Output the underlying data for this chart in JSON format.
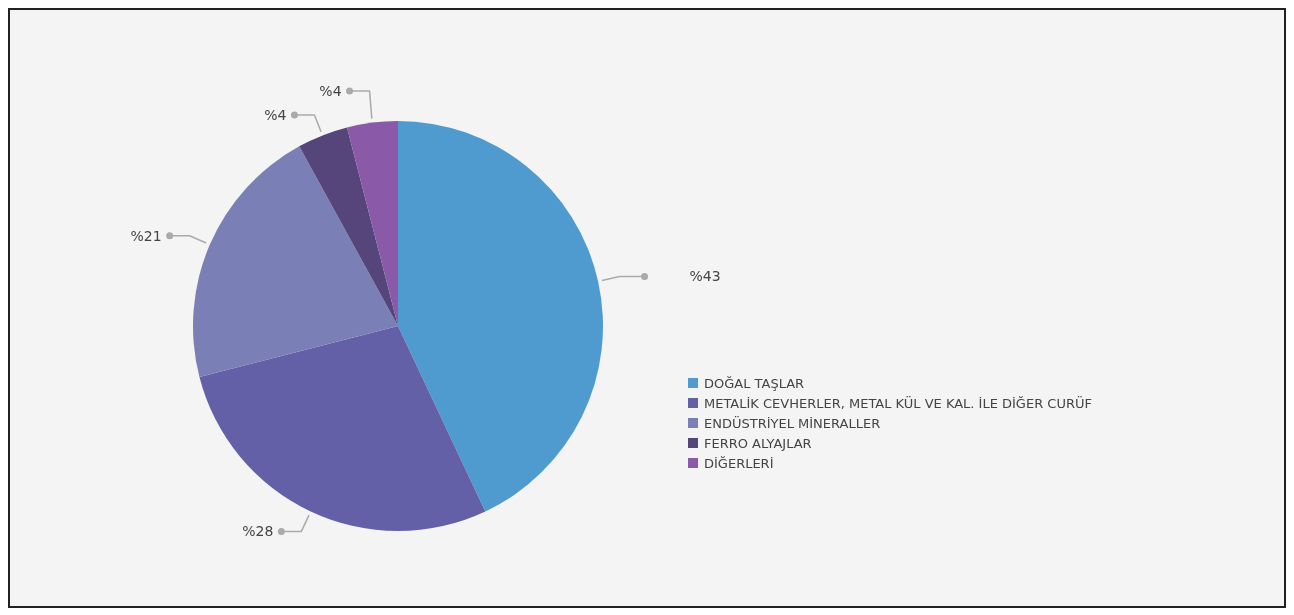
{
  "chart_data": {
    "type": "pie",
    "categories": [
      "DOĞAL TAŞLAR",
      "METALİK CEVHERLER, METAL KÜL VE KAL. İLE DİĞER CURÜF",
      "ENDÜSTRİYEL MİNERALLER",
      "FERRO ALYAJLAR",
      "DİĞERLERİ"
    ],
    "values": [
      43,
      28,
      21,
      4,
      4
    ],
    "colors": [
      "#4f9bd0",
      "#6460a8",
      "#7a7fb5",
      "#55457a",
      "#8a5aa8"
    ],
    "value_labels": [
      "%43",
      "%28",
      "%21",
      "%4",
      "%4"
    ],
    "legend": "right"
  }
}
